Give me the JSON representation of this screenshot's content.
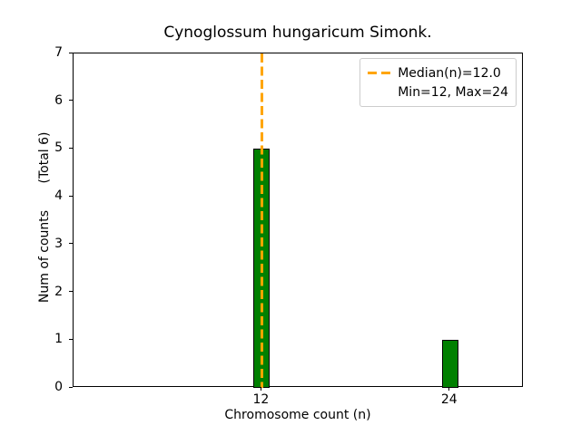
{
  "chart_data": {
    "type": "bar",
    "title": "Cynoglossum hungaricum Simonk.",
    "xlabel": "Chromosome count (n)",
    "ylabel": "Num of counts",
    "ylabel_annotation": "(Total 6)",
    "total_counts": 6,
    "categories": [
      12,
      24
    ],
    "values": [
      5,
      1
    ],
    "bars": [
      {
        "x": 12,
        "count": 5
      },
      {
        "x": 24,
        "count": 1
      }
    ],
    "bar_width_units": 1.04,
    "bar_color": "#008000",
    "bar_edge_color": "#000000",
    "median_line": {
      "x": 12,
      "color": "#FFA500",
      "style": "dashed"
    },
    "xlim": [
      0,
      28.7
    ],
    "ylim": [
      0,
      7
    ],
    "xticks": [
      12,
      24
    ],
    "yticks": [
      0,
      1,
      2,
      3,
      4,
      5,
      6,
      7
    ],
    "grid": false,
    "legend": {
      "position": "upper right",
      "entries": [
        {
          "label": "Median(n)=12.0",
          "handle": "orange-dashed-line"
        },
        {
          "label": "Min=12, Max=24",
          "handle": "none"
        }
      ]
    }
  }
}
